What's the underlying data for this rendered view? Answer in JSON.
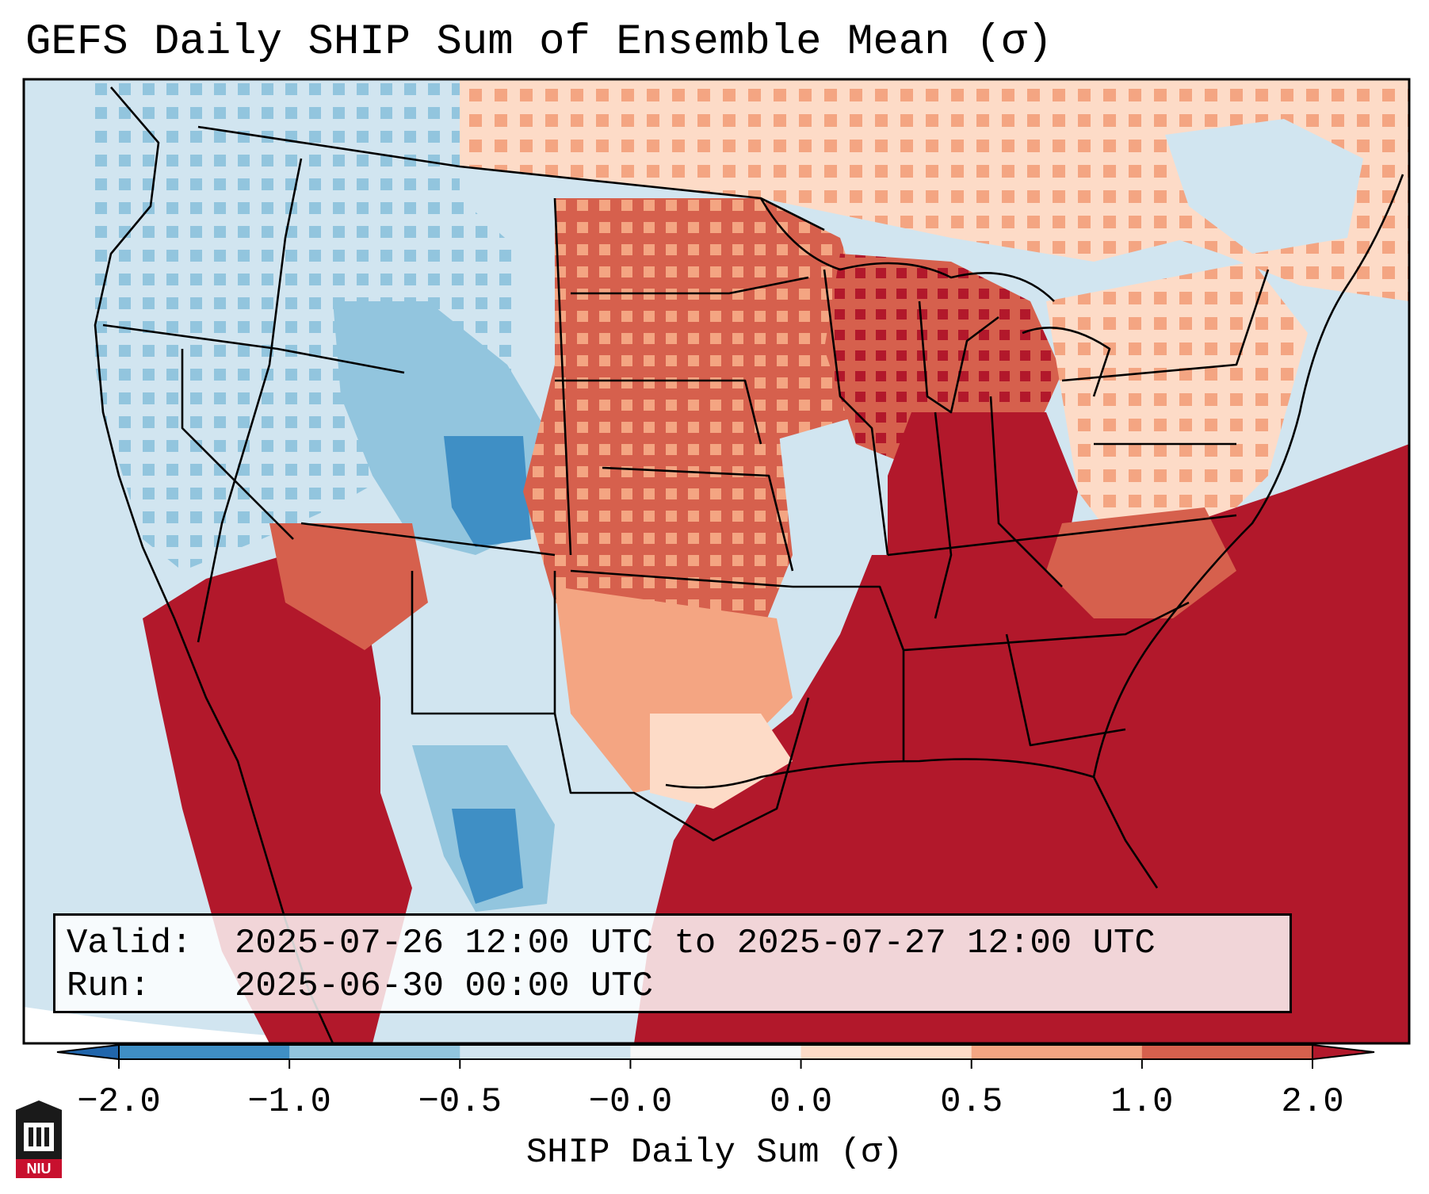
{
  "title": "GEFS Daily SHIP Sum of Ensemble Mean (σ)",
  "info": {
    "valid_label": "Valid:",
    "valid_value": "2025-07-26 12:00 UTC to 2025-07-27 12:00 UTC",
    "run_label": "Run:",
    "run_value": "2025-06-30 00:00 UTC"
  },
  "colorbar": {
    "label": "SHIP Daily Sum (σ)",
    "ticks": [
      "−2.0",
      "−1.0",
      "−0.5",
      "−0.0",
      "0.0",
      "0.5",
      "1.0",
      "2.0"
    ],
    "colors": [
      "#3f8fc5",
      "#92c5de",
      "#d1e5f0",
      "#f7f7f7",
      "#fddbc7",
      "#f4a582",
      "#d6604d",
      "#b2182b"
    ],
    "extend_low_color": "#2166ac",
    "extend_high_color": "#b2182b"
  },
  "map": {
    "ocean_color": "#d1e5f0",
    "region": "Contiguous United States, southern Canada, northern Mexico",
    "dominant_features": [
      {
        "name": "southeast-gulf-high",
        "color": "#b2182b"
      },
      {
        "name": "midwest-high",
        "color": "#d6604d"
      },
      {
        "name": "rockies-low",
        "color": "#92c5de"
      },
      {
        "name": "west-texas-low",
        "color": "#3f8fc5"
      }
    ]
  },
  "logo": {
    "text": "NIU",
    "color": "#c8102e"
  }
}
